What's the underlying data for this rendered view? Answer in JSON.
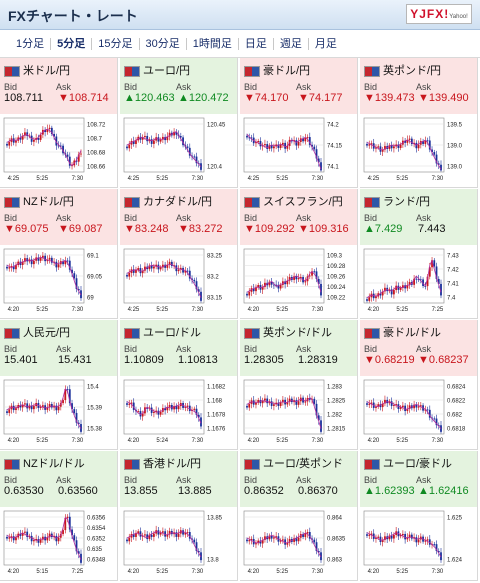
{
  "header": {
    "title": "FXチャート・レート",
    "logo_text": "YJFX!",
    "logo_sub": "Yahoo!"
  },
  "tabs": [
    {
      "label": "1分足",
      "active": false
    },
    {
      "label": "5分足",
      "active": true
    },
    {
      "label": "15分足",
      "active": false
    },
    {
      "label": "30分足",
      "active": false
    },
    {
      "label": "1時間足",
      "active": false
    },
    {
      "label": "日足",
      "active": false
    },
    {
      "label": "週足",
      "active": false
    },
    {
      "label": "月足",
      "active": false
    }
  ],
  "colors": {
    "up_bg": "#e4f3df",
    "down_bg": "#fbe3e3",
    "up": "#108a22",
    "down": "#c8161d",
    "candle_up": "#c8161d",
    "candle_down": "#1a2f9a",
    "ma": "#b12a9c"
  },
  "cells": [
    {
      "name": "米ドル/円",
      "dir": "down",
      "bid": "108.711",
      "ask": "108.714",
      "bid_arrow": "",
      "ask_arrow": "▼",
      "bid_color": "flat",
      "ask_color": "down",
      "ticks": [
        "108.72",
        "108.7",
        "108.68",
        "108.66"
      ],
      "xlabels": [
        "4:25",
        "5:25",
        "7:30"
      ],
      "trend": [
        0.55,
        0.6,
        0.58,
        0.66,
        0.7,
        0.62,
        0.6,
        0.72,
        0.8,
        0.75,
        0.55,
        0.45,
        0.3,
        0.1,
        0.2,
        0.4
      ]
    },
    {
      "name": "ユーロ/円",
      "dir": "up",
      "bid": "120.463",
      "ask": "120.472",
      "bid_arrow": "▲",
      "ask_arrow": "▲",
      "bid_color": "up",
      "ask_color": "up",
      "ticks": [
        "120.45",
        "120.4"
      ],
      "xlabels": [
        "4:25",
        "5:25",
        "7:30"
      ],
      "trend": [
        0.5,
        0.55,
        0.6,
        0.65,
        0.6,
        0.58,
        0.62,
        0.6,
        0.64,
        0.7,
        0.75,
        0.6,
        0.45,
        0.3,
        0.2,
        0.1
      ]
    },
    {
      "name": "豪ドル/円",
      "dir": "down",
      "bid": "74.170",
      "ask": "74.177",
      "bid_arrow": "▼",
      "ask_arrow": "▼",
      "bid_color": "down",
      "ask_color": "down",
      "ticks": [
        "74.2",
        "74.15",
        "74.1"
      ],
      "xlabels": [
        "4:25",
        "5:25",
        "7:30"
      ],
      "trend": [
        0.7,
        0.6,
        0.55,
        0.5,
        0.45,
        0.5,
        0.48,
        0.52,
        0.45,
        0.6,
        0.55,
        0.6,
        0.65,
        0.5,
        0.3,
        0.05
      ]
    },
    {
      "name": "英ポンド/円",
      "dir": "down",
      "bid": "139.473",
      "ask": "139.490",
      "bid_arrow": "▼",
      "ask_arrow": "▼",
      "bid_color": "down",
      "ask_color": "down",
      "ticks": [
        "139.5",
        "139.0",
        "139.0"
      ],
      "xlabels": [
        "4:25",
        "5:25",
        "7:30"
      ],
      "trend": [
        0.55,
        0.5,
        0.45,
        0.4,
        0.45,
        0.5,
        0.48,
        0.52,
        0.6,
        0.55,
        0.5,
        0.55,
        0.6,
        0.4,
        0.2,
        0.05
      ]
    },
    {
      "name": "NZドル/円",
      "dir": "down",
      "bid": "69.075",
      "ask": "69.087",
      "bid_arrow": "▼",
      "ask_arrow": "▼",
      "bid_color": "down",
      "ask_color": "down",
      "ticks": [
        "69.1",
        "69.05",
        "69"
      ],
      "xlabels": [
        "4:20",
        "5:25",
        "7:30"
      ],
      "trend": [
        0.7,
        0.65,
        0.72,
        0.75,
        0.8,
        0.78,
        0.82,
        0.85,
        0.8,
        0.78,
        0.72,
        0.75,
        0.8,
        0.6,
        0.3,
        0.15
      ]
    },
    {
      "name": "カナダドル/円",
      "dir": "down",
      "bid": "83.248",
      "ask": "83.272",
      "bid_arrow": "▼",
      "ask_arrow": "▼",
      "bid_color": "down",
      "ask_color": "down",
      "ticks": [
        "83.25",
        "83.2",
        "83.15"
      ],
      "xlabels": [
        "4:25",
        "5:25",
        "7:30"
      ],
      "trend": [
        0.55,
        0.6,
        0.62,
        0.58,
        0.65,
        0.7,
        0.68,
        0.66,
        0.7,
        0.72,
        0.65,
        0.62,
        0.6,
        0.45,
        0.3,
        0.1
      ]
    },
    {
      "name": "スイスフラン/円",
      "dir": "down",
      "bid": "109.292",
      "ask": "109.316",
      "bid_arrow": "▼",
      "ask_arrow": "▼",
      "bid_color": "down",
      "ask_color": "down",
      "ticks": [
        "109.3",
        "109.28",
        "109.26",
        "109.24",
        "109.22"
      ],
      "xlabels": [
        "4:20",
        "5:25",
        "7:30"
      ],
      "trend": [
        0.2,
        0.25,
        0.3,
        0.28,
        0.35,
        0.4,
        0.3,
        0.35,
        0.4,
        0.45,
        0.5,
        0.45,
        0.4,
        0.6,
        0.5,
        0.2
      ]
    },
    {
      "name": "ランド/円",
      "dir": "up",
      "bid": "7.429",
      "ask": "7.443",
      "bid_arrow": "▲",
      "ask_arrow": "",
      "bid_color": "up",
      "ask_color": "flat",
      "ticks": [
        "7.43",
        "7.42",
        "7.41",
        "7.4"
      ],
      "xlabels": [
        "4:20",
        "5:25",
        "7:25"
      ],
      "trend": [
        0.1,
        0.15,
        0.12,
        0.2,
        0.25,
        0.22,
        0.3,
        0.28,
        0.32,
        0.35,
        0.5,
        0.4,
        0.3,
        0.85,
        0.5,
        0.2
      ]
    },
    {
      "name": "人民元/円",
      "dir": "up",
      "bid": "15.401",
      "ask": "15.431",
      "bid_arrow": "",
      "ask_arrow": "",
      "bid_color": "flat",
      "ask_color": "flat",
      "ticks": [
        "15.4",
        "15.39",
        "15.38"
      ],
      "xlabels": [
        "4:20",
        "5:25",
        "7:30"
      ],
      "trend": [
        0.45,
        0.5,
        0.48,
        0.55,
        0.5,
        0.52,
        0.55,
        0.5,
        0.48,
        0.52,
        0.5,
        0.55,
        0.9,
        0.5,
        0.25,
        0.1
      ]
    },
    {
      "name": "ユーロ/ドル",
      "dir": "up",
      "bid": "1.10809",
      "ask": "1.10813",
      "bid_arrow": "",
      "ask_arrow": "",
      "bid_color": "flat",
      "ask_color": "flat",
      "ticks": [
        "1.1682",
        "1.168",
        "1.1678",
        "1.1676"
      ],
      "xlabels": [
        "4:20",
        "5:24",
        "7:30"
      ],
      "trend": [
        0.6,
        0.55,
        0.4,
        0.35,
        0.5,
        0.45,
        0.4,
        0.42,
        0.5,
        0.48,
        0.52,
        0.55,
        0.5,
        0.45,
        0.4,
        0.2
      ]
    },
    {
      "name": "英ポンド/ドル",
      "dir": "up",
      "bid": "1.28305",
      "ask": "1.28319",
      "bid_arrow": "",
      "ask_arrow": "",
      "bid_color": "flat",
      "ask_color": "flat",
      "ticks": [
        "1.283",
        "1.2825",
        "1.282",
        "1.2815"
      ],
      "xlabels": [
        "4:20",
        "5:25",
        "7:30"
      ],
      "trend": [
        0.55,
        0.6,
        0.58,
        0.62,
        0.6,
        0.58,
        0.55,
        0.6,
        0.58,
        0.62,
        0.6,
        0.65,
        0.6,
        0.7,
        0.4,
        0.1
      ]
    },
    {
      "name": "豪ドル/ドル",
      "dir": "down",
      "bid": "0.68219",
      "ask": "0.68237",
      "bid_arrow": "▼",
      "ask_arrow": "▼",
      "bid_color": "down",
      "ask_color": "down",
      "ticks": [
        "0.6824",
        "0.6822",
        "0.682",
        "0.6818"
      ],
      "xlabels": [
        "4:20",
        "5:25",
        "7:30"
      ],
      "trend": [
        0.6,
        0.55,
        0.5,
        0.55,
        0.6,
        0.58,
        0.52,
        0.5,
        0.45,
        0.5,
        0.55,
        0.5,
        0.45,
        0.3,
        0.2,
        0.1
      ]
    },
    {
      "name": "NZドル/ドル",
      "dir": "up",
      "bid": "0.63530",
      "ask": "0.63560",
      "bid_arrow": "",
      "ask_arrow": "",
      "bid_color": "flat",
      "ask_color": "flat",
      "ticks": [
        "0.6356",
        "0.6354",
        "0.6352",
        "0.635",
        "0.6348"
      ],
      "xlabels": [
        "4:20",
        "5:15",
        "7:25"
      ],
      "trend": [
        0.55,
        0.5,
        0.52,
        0.6,
        0.55,
        0.5,
        0.45,
        0.48,
        0.5,
        0.55,
        0.5,
        0.55,
        0.95,
        0.6,
        0.3,
        0.1
      ]
    },
    {
      "name": "香港ドル/円",
      "dir": "up",
      "bid": "13.855",
      "ask": "13.885",
      "bid_arrow": "",
      "ask_arrow": "",
      "bid_color": "flat",
      "ask_color": "flat",
      "ticks": [
        "13.85",
        "13.8"
      ],
      "xlabels": [
        "4:20",
        "5:25",
        "7:30"
      ],
      "trend": [
        0.5,
        0.55,
        0.6,
        0.55,
        0.5,
        0.58,
        0.62,
        0.6,
        0.55,
        0.6,
        0.58,
        0.62,
        0.6,
        0.5,
        0.3,
        0.15
      ]
    },
    {
      "name": "ユーロ/英ポンド",
      "dir": "up",
      "bid": "0.86352",
      "ask": "0.86370",
      "bid_arrow": "",
      "ask_arrow": "",
      "bid_color": "flat",
      "ask_color": "flat",
      "ticks": [
        "0.864",
        "0.8635",
        "0.863"
      ],
      "xlabels": [
        "4:20",
        "5:25",
        "7:30"
      ],
      "trend": [
        0.5,
        0.45,
        0.4,
        0.45,
        0.5,
        0.55,
        0.5,
        0.45,
        0.4,
        0.45,
        0.5,
        0.55,
        0.6,
        0.5,
        0.3,
        0.15
      ]
    },
    {
      "name": "ユーロ/豪ドル",
      "dir": "up",
      "bid": "1.62393",
      "ask": "1.62416",
      "bid_arrow": "▲",
      "ask_arrow": "▲",
      "bid_color": "up",
      "ask_color": "up",
      "ticks": [
        "1.625",
        "1.624"
      ],
      "xlabels": [
        "4:20",
        "5:25",
        "7:30"
      ],
      "trend": [
        0.6,
        0.55,
        0.5,
        0.45,
        0.5,
        0.55,
        0.6,
        0.55,
        0.5,
        0.52,
        0.48,
        0.5,
        0.45,
        0.4,
        0.3,
        0.15
      ]
    }
  ]
}
